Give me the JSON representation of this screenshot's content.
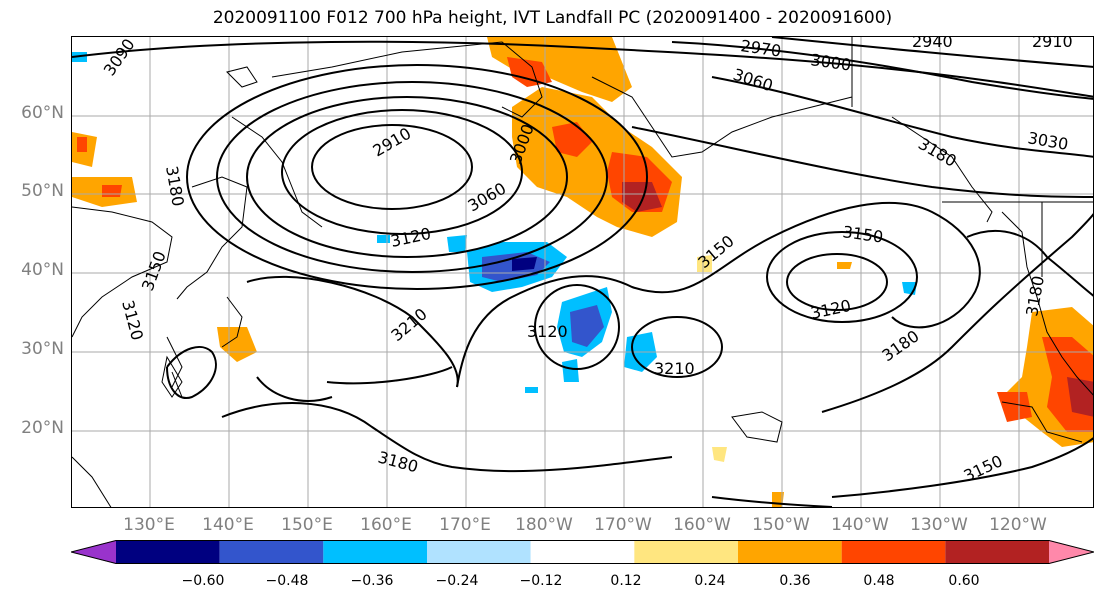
{
  "title": "2020091100 F012 700 hPa height, IVT Landfall PC (2020091400 - 2020091600)",
  "lat_labels": [
    "60°N",
    "50°N",
    "40°N",
    "30°N",
    "20°N"
  ],
  "lon_labels": [
    "130°E",
    "140°E",
    "150°E",
    "160°E",
    "170°E",
    "180°W",
    "170°W",
    "160°W",
    "150°W",
    "140°W",
    "130°W",
    "120°W"
  ],
  "colorbar": {
    "ticks": [
      "−0.60",
      "−0.48",
      "−0.36",
      "−0.24",
      "−0.12",
      "0.12",
      "0.24",
      "0.36",
      "0.48",
      "0.60"
    ],
    "colors": [
      "#9933cc",
      "#000080",
      "#3355cc",
      "#00bfff",
      "#b0e2ff",
      "#ffffff",
      "#ffe680",
      "#ffa500",
      "#ff4500",
      "#b22222",
      "#ff88aa"
    ]
  },
  "contour_labels": [
    "3090",
    "2970",
    "2940",
    "2910",
    "3060",
    "3000",
    "3030",
    "2910",
    "3000",
    "3060",
    "3180",
    "3120",
    "3120",
    "3150",
    "3150",
    "3120",
    "3180",
    "3150",
    "3210",
    "3120",
    "3210",
    "3180",
    "3180",
    "3150",
    "3180"
  ],
  "colors": {
    "axis_label": "#808080",
    "contour": "#000000",
    "grid": "#aaaaaa"
  }
}
